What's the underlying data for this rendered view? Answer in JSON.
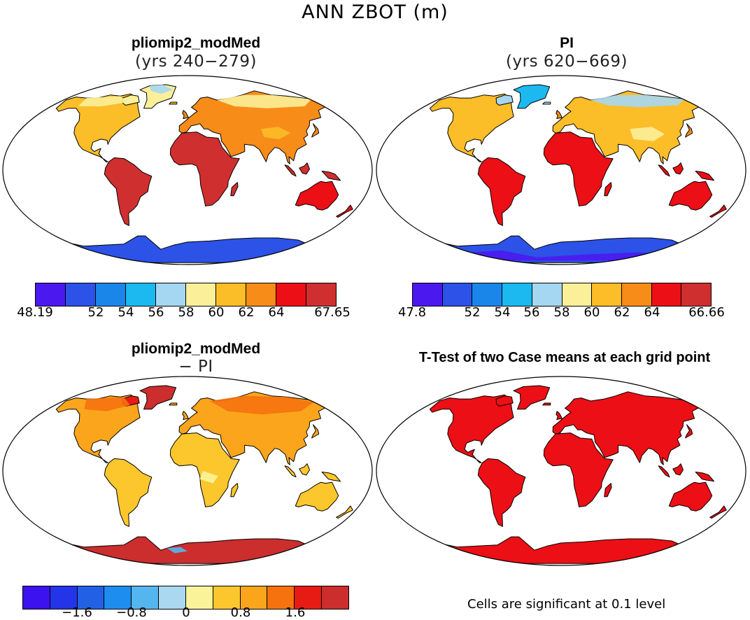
{
  "figure": {
    "title": "ANN ZBOT (m)"
  },
  "panels": [
    {
      "title": "pliomip2_modMed",
      "subtitle": "(yrs 240−279)",
      "colorbar": {
        "colors": [
          "#4b19f0",
          "#2c52e8",
          "#1b86ea",
          "#1cb9f0",
          "#a6d7f2",
          "#fbf099",
          "#fbbd28",
          "#f88c19",
          "#ec0f15",
          "#d02f2f"
        ],
        "labels": [
          "48.19",
          "52",
          "54",
          "56",
          "58",
          "60",
          "62",
          "64",
          "67.65"
        ]
      }
    },
    {
      "title": "PI",
      "subtitle": "(yrs 620−669)",
      "colorbar": {
        "colors": [
          "#4b19f0",
          "#2c52e8",
          "#1b86ea",
          "#1cb9f0",
          "#a6d7f2",
          "#fbf099",
          "#fbbd28",
          "#f88c19",
          "#ec0f15",
          "#d02f2f"
        ],
        "labels": [
          "47.8",
          "52",
          "54",
          "56",
          "58",
          "60",
          "62",
          "64",
          "66.66"
        ]
      }
    },
    {
      "title": "pliomip2_modMed",
      "subtitle": "− PI",
      "colorbar": {
        "colors": [
          "#3c12ee",
          "#2434e8",
          "#2261e6",
          "#1d8df0",
          "#55b6ef",
          "#a9d8f0",
          "#fbf39a",
          "#fbc72c",
          "#fba51c",
          "#f6720f",
          "#e81a14",
          "#cc2d2d"
        ],
        "labels": [
          "−1.6",
          "−0.8",
          "0",
          "0.8",
          "1.6"
        ]
      }
    },
    {
      "title": "T-Test of two Case means at each grid point",
      "note": "Cells are significant at 0.1 level"
    }
  ]
}
